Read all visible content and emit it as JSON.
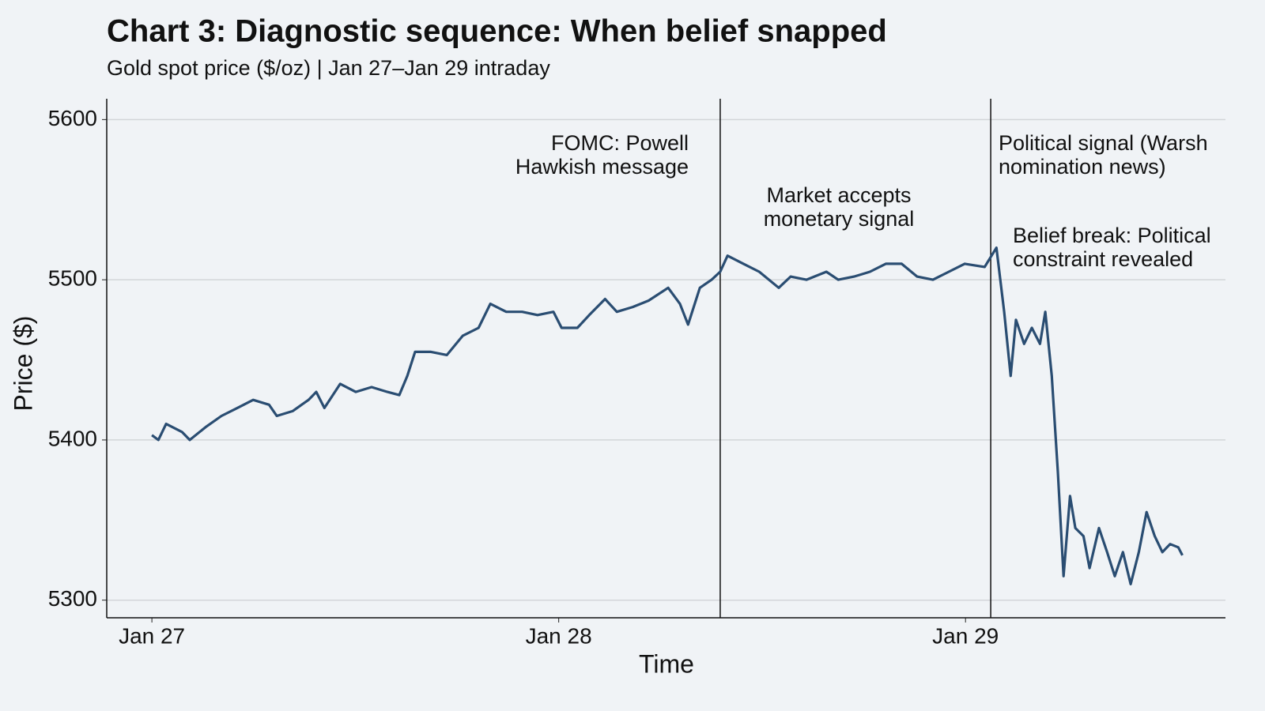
{
  "chart_data": {
    "type": "line",
    "title": "Chart 3: Diagnostic sequence: When belief snapped",
    "subtitle": "Gold spot price ($/oz) | Jan 27–Jan 29 intraday",
    "xlabel": "Time",
    "ylabel": "Price ($)",
    "x": [
      0,
      0.016,
      0.035,
      0.074,
      0.093,
      0.132,
      0.171,
      0.21,
      0.249,
      0.288,
      0.307,
      0.346,
      0.385,
      0.404,
      0.424,
      0.463,
      0.501,
      0.54,
      0.579,
      0.608,
      0.628,
      0.647,
      0.686,
      0.725,
      0.764,
      0.803,
      0.832,
      0.871,
      0.91,
      0.948,
      0.987,
      1.007,
      1.046,
      1.075,
      1.114,
      1.143,
      1.182,
      1.221,
      1.269,
      1.298,
      1.318,
      1.347,
      1.376,
      1.397,
      1.415,
      1.454,
      1.493,
      1.541,
      1.57,
      1.609,
      1.658,
      1.687,
      1.726,
      1.765,
      1.804,
      1.843,
      1.881,
      1.92,
      1.959,
      1.998,
      2.047,
      2.076,
      2.095,
      2.111,
      2.124,
      2.144,
      2.163,
      2.183,
      2.196,
      2.212,
      2.227,
      2.241,
      2.257,
      2.27,
      2.29,
      2.305,
      2.328,
      2.348,
      2.367,
      2.387,
      2.406,
      2.426,
      2.445,
      2.465,
      2.484,
      2.503,
      2.523,
      2.533
    ],
    "series": [
      {
        "name": "Gold spot price",
        "color": "#2a4d72",
        "values": [
          5403,
          5400,
          5410,
          5405,
          5400,
          5408,
          5415,
          5420,
          5425,
          5422,
          5415,
          5418,
          5425,
          5430,
          5420,
          5435,
          5430,
          5433,
          5430,
          5428,
          5440,
          5455,
          5455,
          5453,
          5465,
          5470,
          5485,
          5480,
          5480,
          5478,
          5480,
          5470,
          5470,
          5478,
          5488,
          5480,
          5483,
          5487,
          5495,
          5485,
          5472,
          5495,
          5500,
          5505,
          5515,
          5510,
          5505,
          5495,
          5502,
          5500,
          5505,
          5500,
          5502,
          5505,
          5510,
          5510,
          5502,
          5500,
          5505,
          5510,
          5508,
          5520,
          5480,
          5440,
          5475,
          5460,
          5470,
          5460,
          5480,
          5440,
          5380,
          5315,
          5365,
          5345,
          5340,
          5320,
          5345,
          5330,
          5315,
          5330,
          5310,
          5330,
          5355,
          5340,
          5330,
          5335,
          5333,
          5328
        ]
      }
    ],
    "xlim": [
      -0.111,
      2.639
    ],
    "xticks": [
      {
        "value": 0,
        "label": "Jan 27"
      },
      {
        "value": 1,
        "label": "Jan 28"
      },
      {
        "value": 2,
        "label": "Jan 29"
      }
    ],
    "ylim": [
      5289,
      5613
    ],
    "yticks": [
      5300,
      5400,
      5500,
      5600
    ],
    "grid": true,
    "event_lines": [
      1.397,
      2.062
    ],
    "annotations": [
      {
        "text": [
          "FOMC: Powell",
          "Hawkish message"
        ]
      },
      {
        "text": [
          "Market accepts",
          "monetary signal"
        ]
      },
      {
        "text": [
          "Political signal (Warsh",
          "nomination news)"
        ]
      },
      {
        "text": [
          "Belief break: Political",
          "constraint revealed"
        ]
      }
    ]
  }
}
